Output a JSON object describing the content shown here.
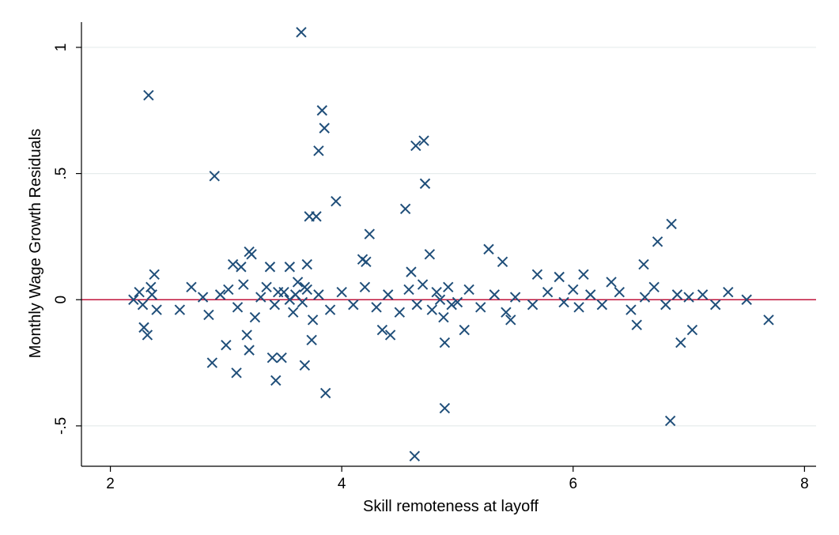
{
  "chart_data": {
    "type": "scatter",
    "title": "",
    "xlabel": "Skill remoteness at layoff",
    "ylabel": "Monthly Wage Growth Residuals",
    "xlim": [
      1.75,
      8.1
    ],
    "ylim": [
      -0.66,
      1.1
    ],
    "x_ticks": [
      2,
      4,
      6,
      8
    ],
    "x_tick_labels": [
      "2",
      "4",
      "6",
      "8"
    ],
    "y_ticks": [
      -0.5,
      0,
      0.5,
      1
    ],
    "y_tick_labels": [
      "-.5",
      "0",
      ".5",
      "1"
    ],
    "grid": "horizontal",
    "reference_line": {
      "y": 0,
      "color": "#c0143c"
    },
    "marker": "x",
    "marker_color": "#1f4e79",
    "plot_background": "#ffffff",
    "frame_background": "#ffffff",
    "grid_color": "#e6ecec",
    "series": [
      {
        "marker": "x",
        "points": [
          [
            2.33,
            0.81
          ],
          [
            3.65,
            1.06
          ],
          [
            2.9,
            0.49
          ],
          [
            3.8,
            0.59
          ],
          [
            3.83,
            0.75
          ],
          [
            3.85,
            0.68
          ],
          [
            3.72,
            0.33
          ],
          [
            3.78,
            0.33
          ],
          [
            3.95,
            0.39
          ],
          [
            4.64,
            0.61
          ],
          [
            4.71,
            0.63
          ],
          [
            4.72,
            0.46
          ],
          [
            4.55,
            0.36
          ],
          [
            4.24,
            0.26
          ],
          [
            4.76,
            0.18
          ],
          [
            5.27,
            0.2
          ],
          [
            5.39,
            0.15
          ],
          [
            6.73,
            0.23
          ],
          [
            6.85,
            0.3
          ],
          [
            6.61,
            0.14
          ],
          [
            3.2,
            0.19
          ],
          [
            3.22,
            0.18
          ],
          [
            3.06,
            0.14
          ],
          [
            3.13,
            0.13
          ],
          [
            3.38,
            0.13
          ],
          [
            3.55,
            0.13
          ],
          [
            3.7,
            0.14
          ],
          [
            4.18,
            0.16
          ],
          [
            4.21,
            0.15
          ],
          [
            4.6,
            0.11
          ],
          [
            2.38,
            0.1
          ],
          [
            5.69,
            0.1
          ],
          [
            5.88,
            0.09
          ],
          [
            6.09,
            0.1
          ],
          [
            6.33,
            0.07
          ],
          [
            2.88,
            -0.25
          ],
          [
            3.09,
            -0.29
          ],
          [
            3.0,
            -0.18
          ],
          [
            3.2,
            -0.2
          ],
          [
            3.4,
            -0.23
          ],
          [
            3.48,
            -0.23
          ],
          [
            3.43,
            -0.32
          ],
          [
            3.68,
            -0.26
          ],
          [
            3.86,
            -0.37
          ],
          [
            4.89,
            -0.43
          ],
          [
            4.63,
            -0.62
          ],
          [
            6.84,
            -0.48
          ],
          [
            6.93,
            -0.17
          ],
          [
            7.03,
            -0.12
          ],
          [
            7.69,
            -0.08
          ],
          [
            2.32,
            -0.14
          ],
          [
            2.29,
            -0.11
          ],
          [
            4.89,
            -0.17
          ],
          [
            4.42,
            -0.14
          ],
          [
            4.35,
            -0.12
          ],
          [
            3.74,
            -0.16
          ],
          [
            3.18,
            -0.14
          ],
          [
            5.46,
            -0.08
          ],
          [
            6.55,
            -0.1
          ],
          [
            7.5,
            0.0
          ],
          [
            7.34,
            0.03
          ],
          [
            7.23,
            -0.02
          ],
          [
            5.06,
            -0.12
          ],
          [
            5.42,
            -0.05
          ],
          [
            6.05,
            -0.03
          ],
          [
            2.2,
            0.0
          ],
          [
            2.25,
            0.03
          ],
          [
            2.28,
            -0.02
          ],
          [
            2.35,
            0.05
          ],
          [
            2.4,
            -0.04
          ],
          [
            2.36,
            0.02
          ],
          [
            2.6,
            -0.04
          ],
          [
            2.7,
            0.05
          ],
          [
            2.8,
            0.01
          ],
          [
            2.85,
            -0.06
          ],
          [
            2.95,
            0.02
          ],
          [
            3.02,
            0.04
          ],
          [
            3.1,
            -0.03
          ],
          [
            3.15,
            0.06
          ],
          [
            3.25,
            -0.07
          ],
          [
            3.3,
            0.01
          ],
          [
            3.35,
            0.05
          ],
          [
            3.42,
            -0.02
          ],
          [
            3.5,
            0.03
          ],
          [
            3.58,
            -0.05
          ],
          [
            3.62,
            0.07
          ],
          [
            3.66,
            -0.01
          ],
          [
            3.7,
            0.04
          ],
          [
            3.75,
            -0.08
          ],
          [
            3.8,
            0.02
          ],
          [
            3.9,
            -0.04
          ],
          [
            4.0,
            0.03
          ],
          [
            4.1,
            -0.02
          ],
          [
            4.2,
            0.05
          ],
          [
            4.3,
            -0.03
          ],
          [
            4.4,
            0.02
          ],
          [
            4.5,
            -0.05
          ],
          [
            4.58,
            0.04
          ],
          [
            4.65,
            -0.02
          ],
          [
            4.7,
            0.06
          ],
          [
            4.78,
            -0.04
          ],
          [
            4.82,
            0.03
          ],
          [
            4.88,
            -0.07
          ],
          [
            4.92,
            0.05
          ],
          [
            5.0,
            -0.01
          ],
          [
            5.1,
            0.04
          ],
          [
            5.2,
            -0.03
          ],
          [
            5.32,
            0.02
          ],
          [
            5.5,
            0.01
          ],
          [
            5.65,
            -0.02
          ],
          [
            5.78,
            0.03
          ],
          [
            5.92,
            -0.01
          ],
          [
            6.0,
            0.04
          ],
          [
            6.15,
            0.02
          ],
          [
            6.25,
            -0.02
          ],
          [
            6.4,
            0.03
          ],
          [
            6.5,
            -0.04
          ],
          [
            6.62,
            0.01
          ],
          [
            6.7,
            0.05
          ],
          [
            6.8,
            -0.02
          ],
          [
            6.9,
            0.02
          ],
          [
            7.0,
            0.01
          ],
          [
            7.12,
            0.02
          ],
          [
            3.55,
            0.0
          ],
          [
            3.6,
            0.02
          ],
          [
            4.85,
            0.0
          ],
          [
            4.95,
            -0.02
          ],
          [
            3.45,
            0.03
          ],
          [
            3.68,
            0.05
          ]
        ]
      }
    ]
  }
}
